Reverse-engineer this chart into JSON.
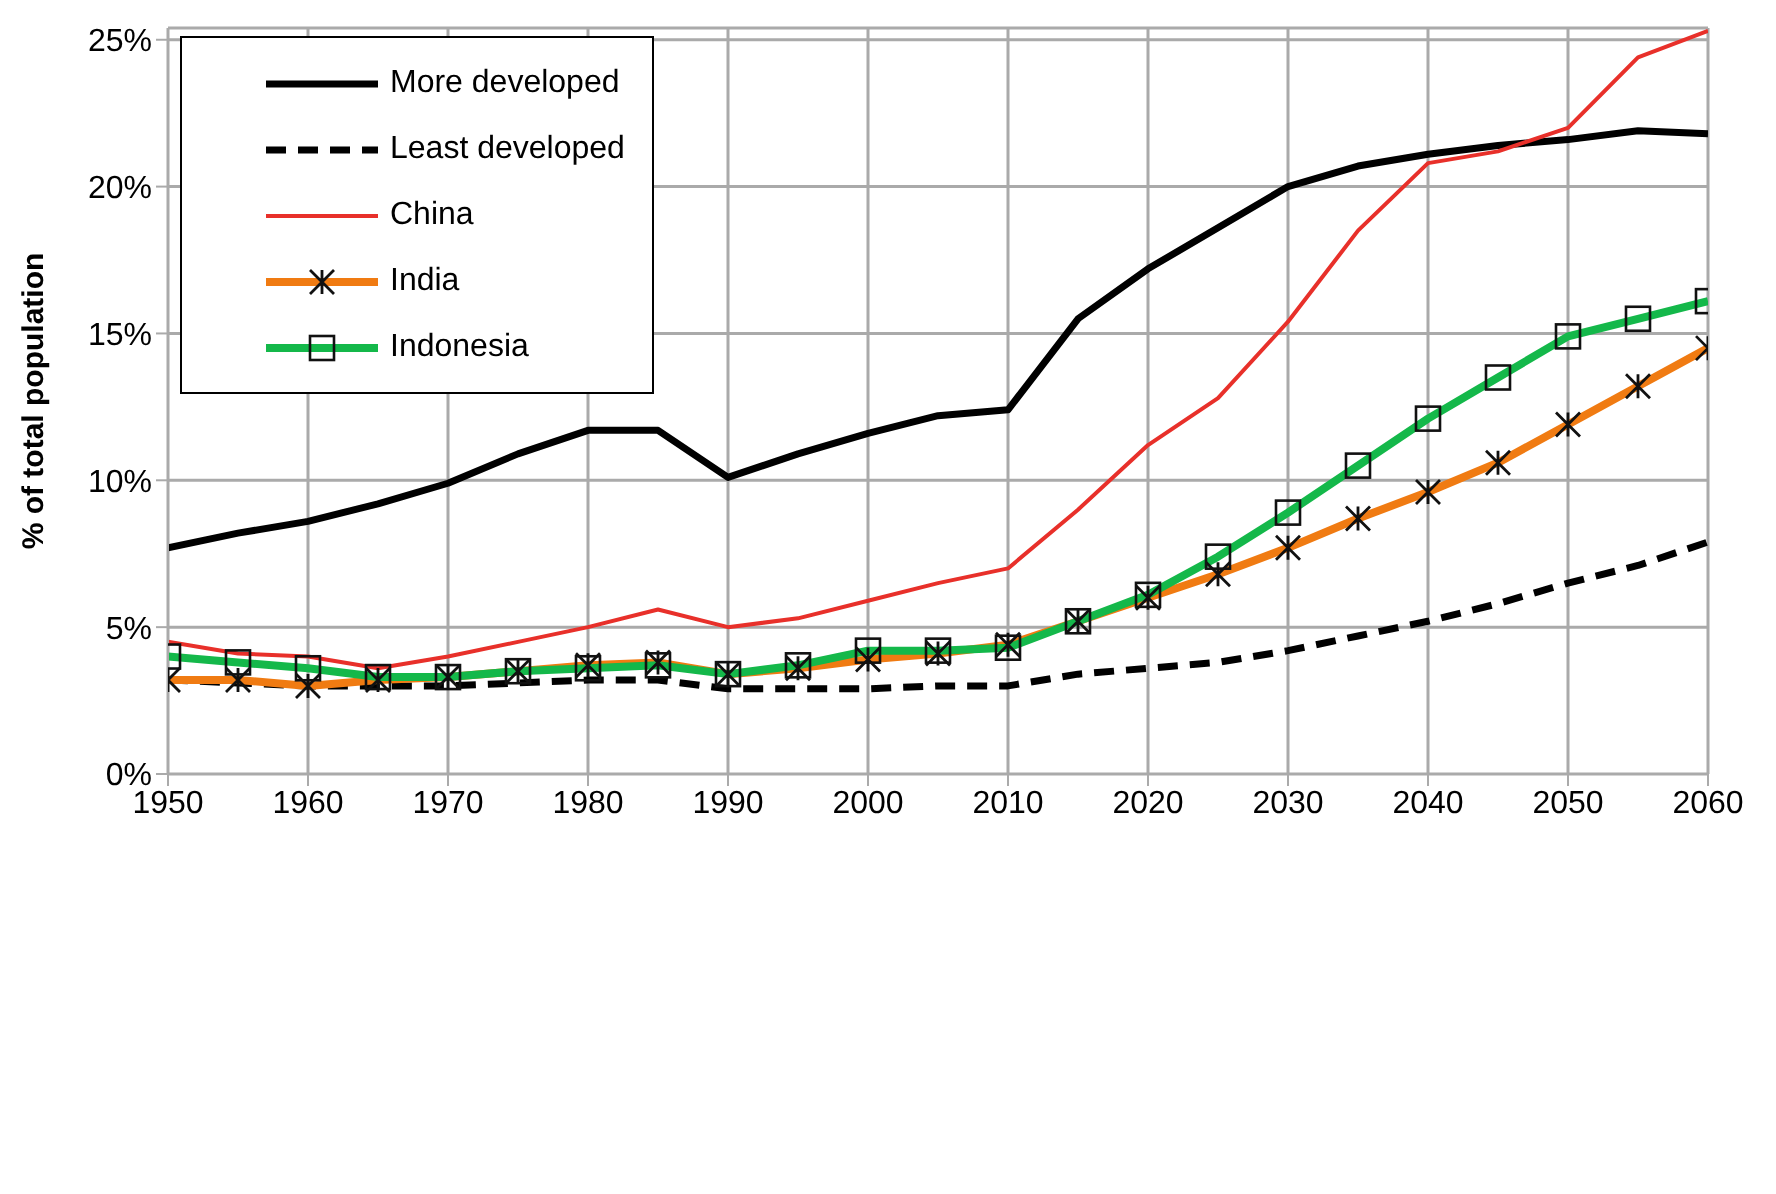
{
  "chart_data": {
    "type": "line",
    "ylabel": "% of total population",
    "x": [
      1950,
      1955,
      1960,
      1965,
      1970,
      1975,
      1980,
      1985,
      1990,
      1995,
      2000,
      2005,
      2010,
      2015,
      2020,
      2025,
      2030,
      2035,
      2040,
      2045,
      2050,
      2055,
      2060
    ],
    "series": [
      {
        "name": "More developed",
        "color": "#000000",
        "marker": "none",
        "line_style": "solid",
        "values": [
          7.7,
          8.2,
          8.6,
          9.2,
          9.9,
          10.9,
          11.7,
          11.7,
          10.1,
          10.9,
          11.6,
          12.2,
          12.4,
          15.5,
          17.2,
          18.6,
          20.0,
          20.7,
          21.1,
          21.4,
          21.6,
          21.9,
          21.8
        ]
      },
      {
        "name": "Least developed",
        "color": "#000000",
        "marker": "none",
        "line_style": "dashed",
        "values": [
          3.2,
          3.1,
          3.0,
          3.0,
          3.0,
          3.1,
          3.2,
          3.2,
          2.9,
          2.9,
          2.9,
          3.0,
          3.0,
          3.4,
          3.6,
          3.8,
          4.2,
          4.7,
          5.2,
          5.8,
          6.5,
          7.1,
          7.9
        ]
      },
      {
        "name": "China",
        "color": "#e8302a",
        "marker": "none",
        "line_style": "solid",
        "values": [
          4.5,
          4.1,
          4.0,
          3.6,
          4.0,
          4.5,
          5.0,
          5.6,
          5.0,
          5.3,
          5.9,
          6.5,
          7.0,
          9.0,
          11.2,
          12.8,
          15.4,
          18.5,
          20.8,
          21.2,
          22.0,
          24.4,
          25.3
        ]
      },
      {
        "name": "India",
        "color": "#f07b12",
        "marker": "cross",
        "line_style": "solid",
        "values": [
          3.2,
          3.2,
          3.0,
          3.2,
          3.3,
          3.5,
          3.7,
          3.8,
          3.4,
          3.6,
          3.9,
          4.1,
          4.4,
          5.2,
          6.0,
          6.8,
          7.7,
          8.7,
          9.6,
          10.6,
          11.9,
          13.2,
          14.5
        ]
      },
      {
        "name": "Indonesia",
        "color": "#14b84a",
        "marker": "square",
        "line_style": "solid",
        "values": [
          4.0,
          3.8,
          3.6,
          3.3,
          3.3,
          3.5,
          3.6,
          3.7,
          3.4,
          3.7,
          4.2,
          4.2,
          4.3,
          5.2,
          6.1,
          7.4,
          8.9,
          10.5,
          12.1,
          13.5,
          14.9,
          15.5,
          16.1
        ]
      }
    ],
    "xlim": [
      1950,
      2060
    ],
    "xticks": [
      1950,
      1960,
      1970,
      1980,
      1990,
      2000,
      2010,
      2020,
      2030,
      2040,
      2050,
      2060
    ],
    "ylim": [
      0,
      25.4
    ],
    "yticks": [
      {
        "value": 0,
        "label": "0%"
      },
      {
        "value": 5,
        "label": "5%"
      },
      {
        "value": 10,
        "label": "10%"
      },
      {
        "value": 15,
        "label": "15%"
      },
      {
        "value": 20,
        "label": "20%"
      },
      {
        "value": 25,
        "label": "25%"
      }
    ],
    "grid": true,
    "legend": "top left"
  }
}
